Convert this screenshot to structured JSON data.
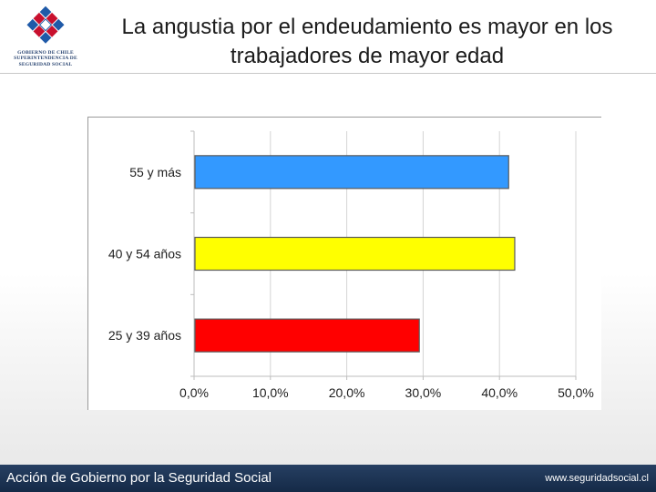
{
  "header": {
    "title_lines": [
      "La angustia por el endeudamiento es mayor en los",
      "trabajadores de mayor edad"
    ],
    "logo_lines": [
      "GOBIERNO DE CHILE",
      "SUPERINTENDENCIA DE",
      "SEGURIDAD SOCIAL"
    ]
  },
  "colors": {
    "logo_red": "#c8102e",
    "logo_blue": "#1f5aa8",
    "footer_bg": "#1c3454"
  },
  "chart_data": {
    "type": "bar",
    "orientation": "horizontal",
    "title": "",
    "xlabel": "",
    "ylabel": "",
    "categories": [
      "55 y más",
      "40 y 54 años",
      "25 y 39 años"
    ],
    "values": [
      41.2,
      42.0,
      29.5
    ],
    "bar_colors": [
      "#3399ff",
      "#ffff00",
      "#ff0000"
    ],
    "xlim": [
      0,
      50
    ],
    "xticks": [
      0,
      10,
      20,
      30,
      40,
      50
    ],
    "xtick_labels": [
      "0,0%",
      "10,0%",
      "20,0%",
      "30,0%",
      "40,0%",
      "50,0%"
    ],
    "grid": true,
    "legend": "none"
  },
  "footer": {
    "left_text": "Acción de Gobierno por la Seguridad Social",
    "right_text": "www.seguridadsocial.cl"
  }
}
